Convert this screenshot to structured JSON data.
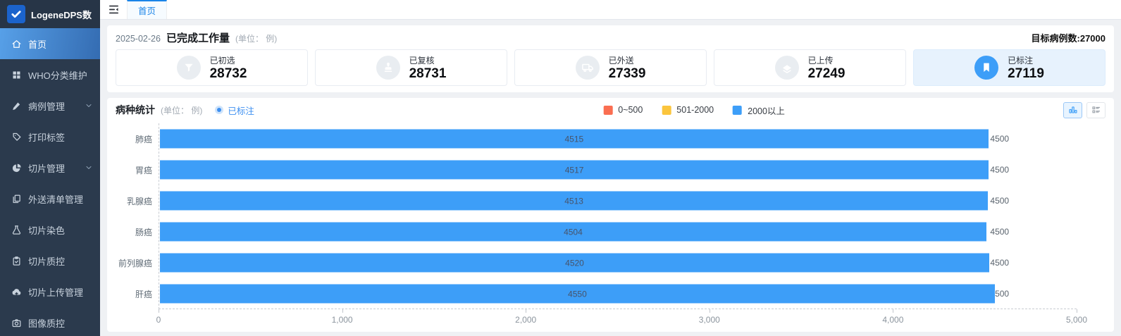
{
  "app": {
    "logo_text": "LogeneDPS数",
    "logo_icon": "check-logo-icon"
  },
  "sidebar": {
    "items": [
      {
        "id": "home",
        "label": "首页",
        "icon": "home-icon",
        "active": true
      },
      {
        "id": "who-category",
        "label": "WHO分类维护",
        "icon": "grid-icon"
      },
      {
        "id": "case-management",
        "label": "病例管理",
        "icon": "edit-icon",
        "expandable": true
      },
      {
        "id": "print-label",
        "label": "打印标签",
        "icon": "tag-icon"
      },
      {
        "id": "slide-management",
        "label": "切片管理",
        "icon": "pie-slice-icon",
        "expandable": true
      },
      {
        "id": "outsource-list",
        "label": "外送清单管理",
        "icon": "document-copy-icon"
      },
      {
        "id": "slide-staining",
        "label": "切片染色",
        "icon": "flask-icon"
      },
      {
        "id": "slide-qc",
        "label": "切片质控",
        "icon": "clipboard-check-icon"
      },
      {
        "id": "slide-upload",
        "label": "切片上传管理",
        "icon": "cloud-upload-icon"
      },
      {
        "id": "image-qc",
        "label": "图像质控",
        "icon": "camera-icon"
      }
    ]
  },
  "tabbar": {
    "collapse_icon": "collapse-menu-icon",
    "active_tab": "首页"
  },
  "workload": {
    "date": "2025-02-26",
    "title": "已完成工作量",
    "unit_note": "(单位： 例)",
    "target_label": "目标病例数:27000",
    "stats": [
      {
        "id": "initial-selected",
        "label": "已初选",
        "value": "28732",
        "icon": "funnel-icon",
        "highlight": false
      },
      {
        "id": "reviewed",
        "label": "已复核",
        "value": "28731",
        "icon": "stamp-icon",
        "highlight": false
      },
      {
        "id": "sent-out",
        "label": "已外送",
        "value": "27339",
        "icon": "truck-icon",
        "highlight": false
      },
      {
        "id": "uploaded",
        "label": "已上传",
        "value": "27249",
        "icon": "scanner-icon",
        "highlight": false
      },
      {
        "id": "annotated",
        "label": "已标注",
        "value": "27119",
        "icon": "bookmark-icon",
        "highlight": true
      }
    ]
  },
  "chart_toolbar": {
    "chart_view_icon": "bar-chart-icon",
    "list_view_icon": "list-view-icon",
    "active_view": "chart"
  },
  "chart_data": {
    "type": "bar",
    "orientation": "horizontal",
    "title": "病种统计",
    "unit_note": "(单位： 例)",
    "series_toggle_label": "已标注",
    "categories": [
      "肺癌",
      "胃癌",
      "乳腺癌",
      "肠癌",
      "前列腺癌",
      "肝癌"
    ],
    "values": [
      4515,
      4517,
      4513,
      4504,
      4520,
      4550
    ],
    "target_value_label": "4500",
    "bar_color": "#3d9ef8",
    "xlim": [
      0,
      5000
    ],
    "x_ticks": [
      "0",
      "1,000",
      "2,000",
      "3,000",
      "4,000",
      "5,000"
    ],
    "grid": "dashed axis lines only",
    "legend_position": "top-center",
    "legend_items": [
      {
        "label": "0~500",
        "color": "#fa6e51"
      },
      {
        "label": "501-2000",
        "color": "#fbc53d"
      },
      {
        "label": "2000以上",
        "color": "#3d9ef8"
      }
    ]
  },
  "colors": {
    "sidebar_bg": "#2b3a4d",
    "active_gradient_start": "#57a0e8",
    "active_gradient_end": "#346cb2",
    "accent_blue": "#3d9ef8",
    "highlight_card_bg": "#e7f2fd",
    "content_bg": "#eff1f4"
  }
}
